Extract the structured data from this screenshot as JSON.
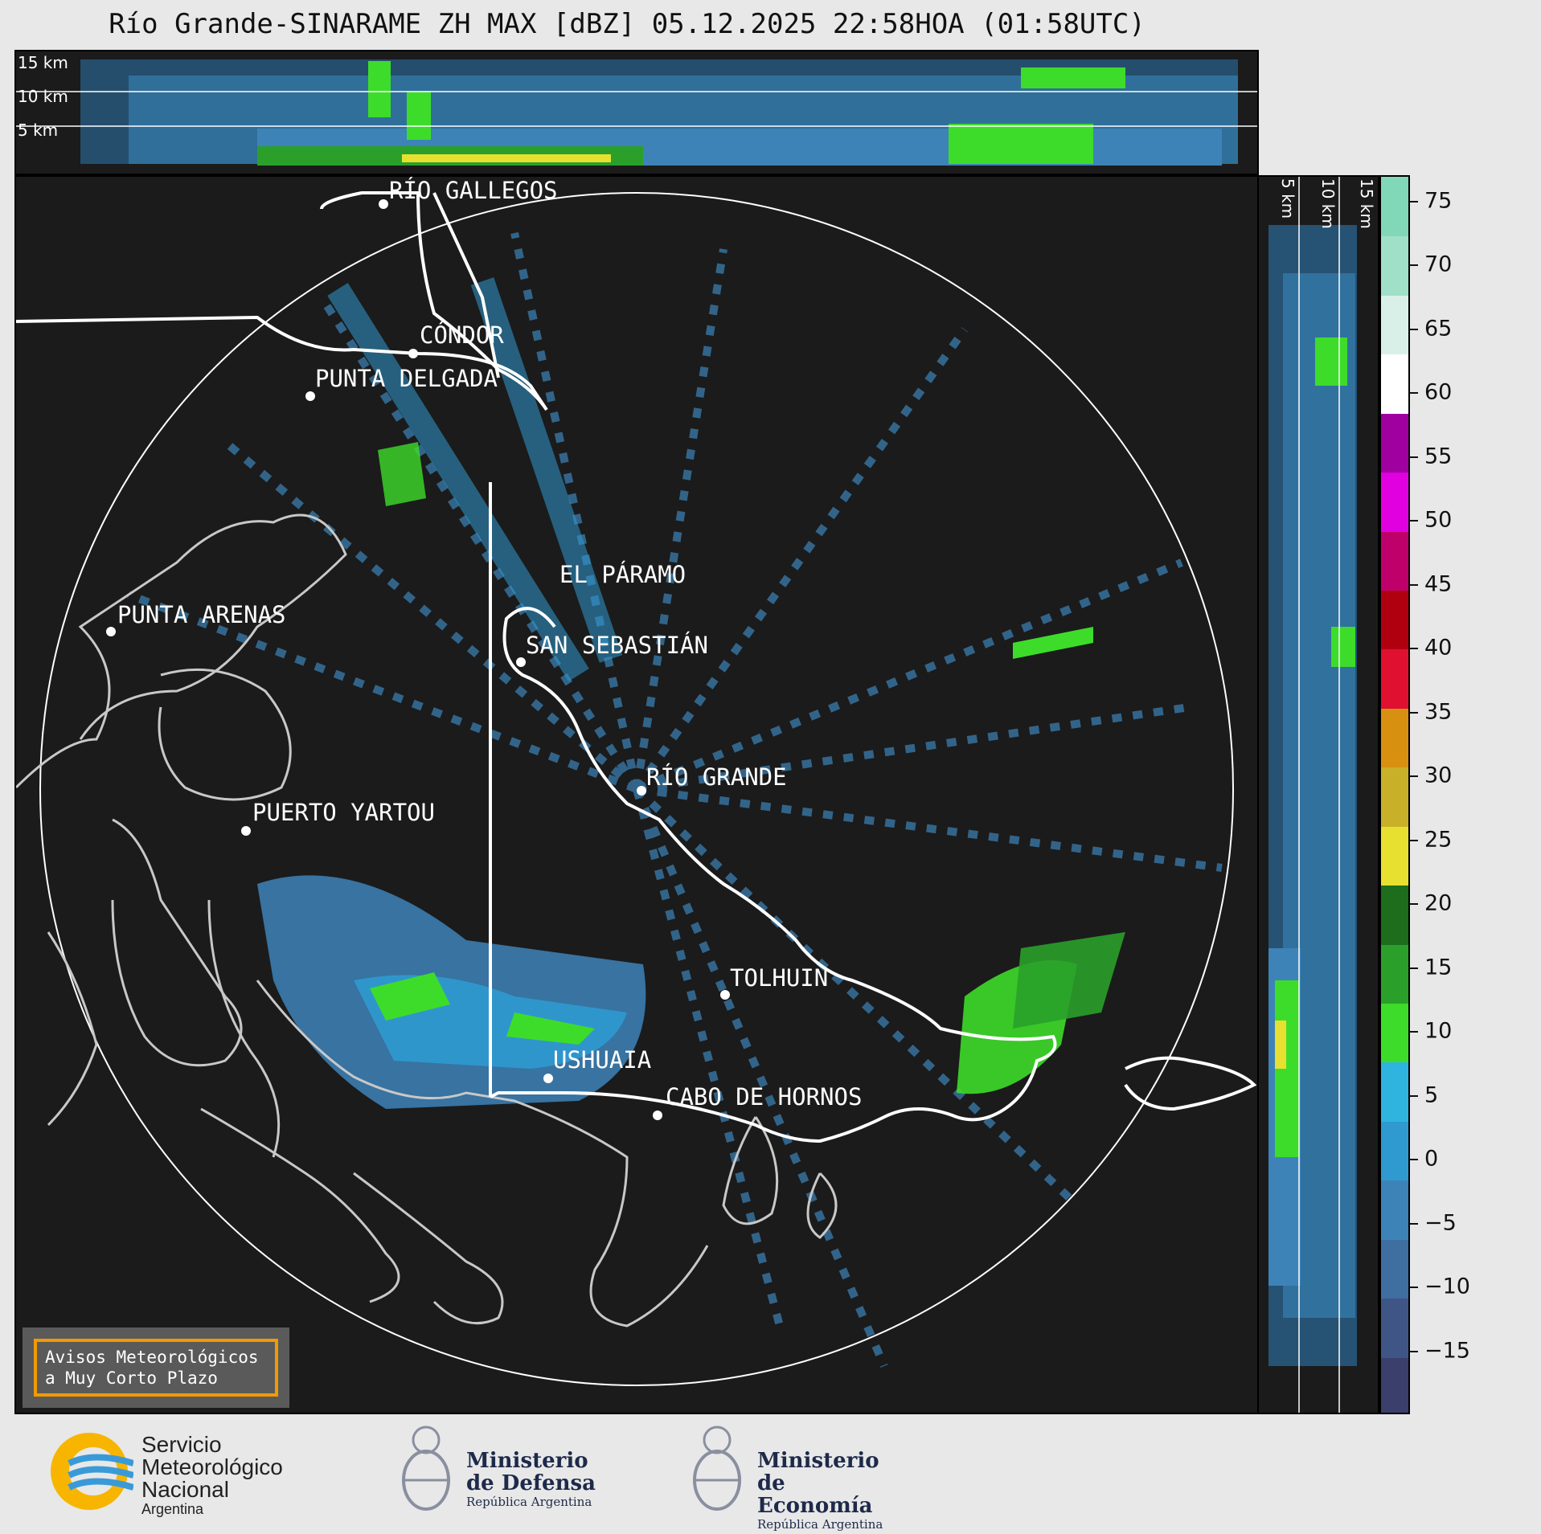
{
  "header": {
    "title": "Río Grande-SINARAME ZH MAX [dBZ] 05.12.2025 22:58HOA (01:58UTC)"
  },
  "top_panel": {
    "altitude_labels": [
      "15 km",
      "10 km",
      "5 km"
    ]
  },
  "right_panel": {
    "altitude_labels": [
      "5 km",
      "10 km",
      "15 km"
    ]
  },
  "map": {
    "places": [
      {
        "id": "rio-gallegos",
        "label": "RÍO GALLEGOS"
      },
      {
        "id": "condor",
        "label": "CÓNDOR"
      },
      {
        "id": "punta-delgada",
        "label": "PUNTA DELGADA"
      },
      {
        "id": "el-paramo",
        "label": "EL PÁRAMO"
      },
      {
        "id": "punta-arenas",
        "label": "PUNTA ARENAS"
      },
      {
        "id": "san-sebastian",
        "label": "SAN SEBASTIÁN"
      },
      {
        "id": "rio-grande",
        "label": "RÍO GRANDE"
      },
      {
        "id": "puerto-yartou",
        "label": "PUERTO YARTOU"
      },
      {
        "id": "tolhuin",
        "label": "TOLHUIN"
      },
      {
        "id": "ushuaia",
        "label": "USHUAIA"
      },
      {
        "id": "cabo-de-hornos",
        "label": "CABO DE HORNOS"
      }
    ]
  },
  "colorbar": {
    "unit": "dBZ",
    "range": [
      -20,
      77
    ],
    "ticks": [
      "75",
      "70",
      "65",
      "60",
      "55",
      "50",
      "45",
      "40",
      "35",
      "30",
      "25",
      "20",
      "15",
      "10",
      "5",
      "0",
      "−5",
      "−10",
      "−15"
    ],
    "tick_values": [
      75,
      70,
      65,
      60,
      55,
      50,
      45,
      40,
      35,
      30,
      25,
      20,
      15,
      10,
      5,
      0,
      -5,
      -10,
      -15
    ],
    "colors": [
      "#3a3f6b",
      "#3f5585",
      "#3f6ea0",
      "#3d83b8",
      "#2f9ad0",
      "#2fb4e0",
      "#3ddc2a",
      "#2aa02a",
      "#1d6d1d",
      "#e8e030",
      "#c8b028",
      "#d89010",
      "#e01030",
      "#b00010",
      "#c0006a",
      "#e000e0",
      "#a000a0",
      "#ffffff",
      "#d8f0e8",
      "#a0e0c8",
      "#80d8b8"
    ]
  },
  "avisos": {
    "line1": "Avisos Meteorológicos",
    "line2": "a Muy Corto Plazo"
  },
  "logos": {
    "smn": {
      "line1": "Servicio",
      "line2": "Meteorológico",
      "line3": "Nacional",
      "country": "Argentina"
    },
    "defensa": {
      "line1": "Ministerio",
      "line2": "de Defensa",
      "sub": "República Argentina"
    },
    "economia": {
      "line1": "Ministerio",
      "line2": "de Economía",
      "sub": "República Argentina"
    }
  }
}
